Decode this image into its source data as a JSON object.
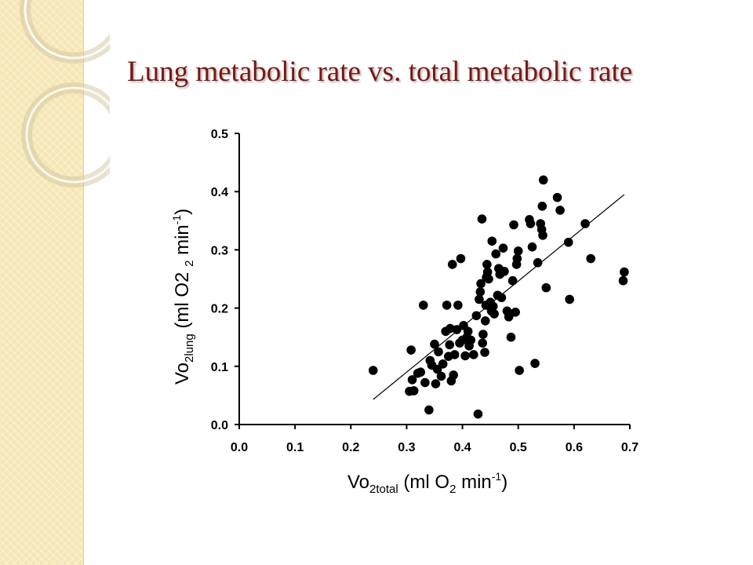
{
  "slide": {
    "title": "Lung metabolic rate vs. total metabolic rate"
  },
  "colors": {
    "title": "#7a1712",
    "side_panel": "#f6e6b3",
    "points": "#000000"
  },
  "chart_data": {
    "type": "scatter",
    "title": "",
    "xlabel": {
      "main": "Vo",
      "sub": "2total",
      "rest": " (ml O",
      "sub2": "2",
      "rest2": " min",
      "sup": "-1",
      "end": ")"
    },
    "ylabel": {
      "main": "Vo",
      "sub": "2lung",
      "rest": " (ml O2 ",
      "sub2": "2",
      "rest2": " min",
      "sup": "-1",
      "end": ")"
    },
    "xlim": [
      0.0,
      0.7
    ],
    "ylim": [
      0.0,
      0.5
    ],
    "x_ticks": [
      "0.0",
      "0.1",
      "0.2",
      "0.3",
      "0.4",
      "0.5",
      "0.6",
      "0.7"
    ],
    "y_ticks": [
      "0.0",
      "0.1",
      "0.2",
      "0.3",
      "0.4",
      "0.5"
    ],
    "grid": false,
    "trendline": {
      "x": [
        0.24,
        0.69
      ],
      "y": [
        0.043,
        0.395
      ]
    },
    "points": [
      [
        0.24,
        0.093
      ],
      [
        0.305,
        0.057
      ],
      [
        0.308,
        0.128
      ],
      [
        0.31,
        0.077
      ],
      [
        0.313,
        0.058
      ],
      [
        0.32,
        0.088
      ],
      [
        0.325,
        0.09
      ],
      [
        0.33,
        0.205
      ],
      [
        0.333,
        0.072
      ],
      [
        0.34,
        0.025
      ],
      [
        0.342,
        0.11
      ],
      [
        0.345,
        0.102
      ],
      [
        0.35,
        0.138
      ],
      [
        0.352,
        0.07
      ],
      [
        0.355,
        0.095
      ],
      [
        0.357,
        0.125
      ],
      [
        0.362,
        0.083
      ],
      [
        0.365,
        0.104
      ],
      [
        0.37,
        0.16
      ],
      [
        0.372,
        0.205
      ],
      [
        0.375,
        0.117
      ],
      [
        0.377,
        0.137
      ],
      [
        0.378,
        0.165
      ],
      [
        0.38,
        0.075
      ],
      [
        0.382,
        0.275
      ],
      [
        0.384,
        0.085
      ],
      [
        0.386,
        0.12
      ],
      [
        0.39,
        0.163
      ],
      [
        0.392,
        0.205
      ],
      [
        0.395,
        0.14
      ],
      [
        0.397,
        0.285
      ],
      [
        0.4,
        0.145
      ],
      [
        0.402,
        0.17
      ],
      [
        0.405,
        0.118
      ],
      [
        0.408,
        0.15
      ],
      [
        0.41,
        0.16
      ],
      [
        0.412,
        0.135
      ],
      [
        0.415,
        0.145
      ],
      [
        0.42,
        0.12
      ],
      [
        0.425,
        0.187
      ],
      [
        0.428,
        0.018
      ],
      [
        0.43,
        0.215
      ],
      [
        0.432,
        0.228
      ],
      [
        0.433,
        0.242
      ],
      [
        0.435,
        0.353
      ],
      [
        0.436,
        0.14
      ],
      [
        0.437,
        0.155
      ],
      [
        0.44,
        0.124
      ],
      [
        0.441,
        0.178
      ],
      [
        0.442,
        0.205
      ],
      [
        0.443,
        0.253
      ],
      [
        0.444,
        0.275
      ],
      [
        0.445,
        0.262
      ],
      [
        0.447,
        0.25
      ],
      [
        0.45,
        0.21
      ],
      [
        0.452,
        0.195
      ],
      [
        0.453,
        0.315
      ],
      [
        0.455,
        0.203
      ],
      [
        0.457,
        0.19
      ],
      [
        0.46,
        0.293
      ],
      [
        0.463,
        0.222
      ],
      [
        0.465,
        0.268
      ],
      [
        0.467,
        0.258
      ],
      [
        0.47,
        0.218
      ],
      [
        0.473,
        0.303
      ],
      [
        0.475,
        0.263
      ],
      [
        0.48,
        0.195
      ],
      [
        0.483,
        0.185
      ],
      [
        0.485,
        0.19
      ],
      [
        0.487,
        0.15
      ],
      [
        0.49,
        0.247
      ],
      [
        0.492,
        0.343
      ],
      [
        0.495,
        0.193
      ],
      [
        0.497,
        0.275
      ],
      [
        0.498,
        0.285
      ],
      [
        0.5,
        0.298
      ],
      [
        0.502,
        0.093
      ],
      [
        0.52,
        0.352
      ],
      [
        0.522,
        0.345
      ],
      [
        0.525,
        0.305
      ],
      [
        0.53,
        0.105
      ],
      [
        0.535,
        0.278
      ],
      [
        0.54,
        0.345
      ],
      [
        0.542,
        0.335
      ],
      [
        0.543,
        0.375
      ],
      [
        0.544,
        0.325
      ],
      [
        0.545,
        0.42
      ],
      [
        0.55,
        0.235
      ],
      [
        0.57,
        0.39
      ],
      [
        0.575,
        0.368
      ],
      [
        0.59,
        0.313
      ],
      [
        0.592,
        0.215
      ],
      [
        0.62,
        0.345
      ],
      [
        0.63,
        0.285
      ],
      [
        0.688,
        0.247
      ],
      [
        0.69,
        0.262
      ]
    ]
  }
}
